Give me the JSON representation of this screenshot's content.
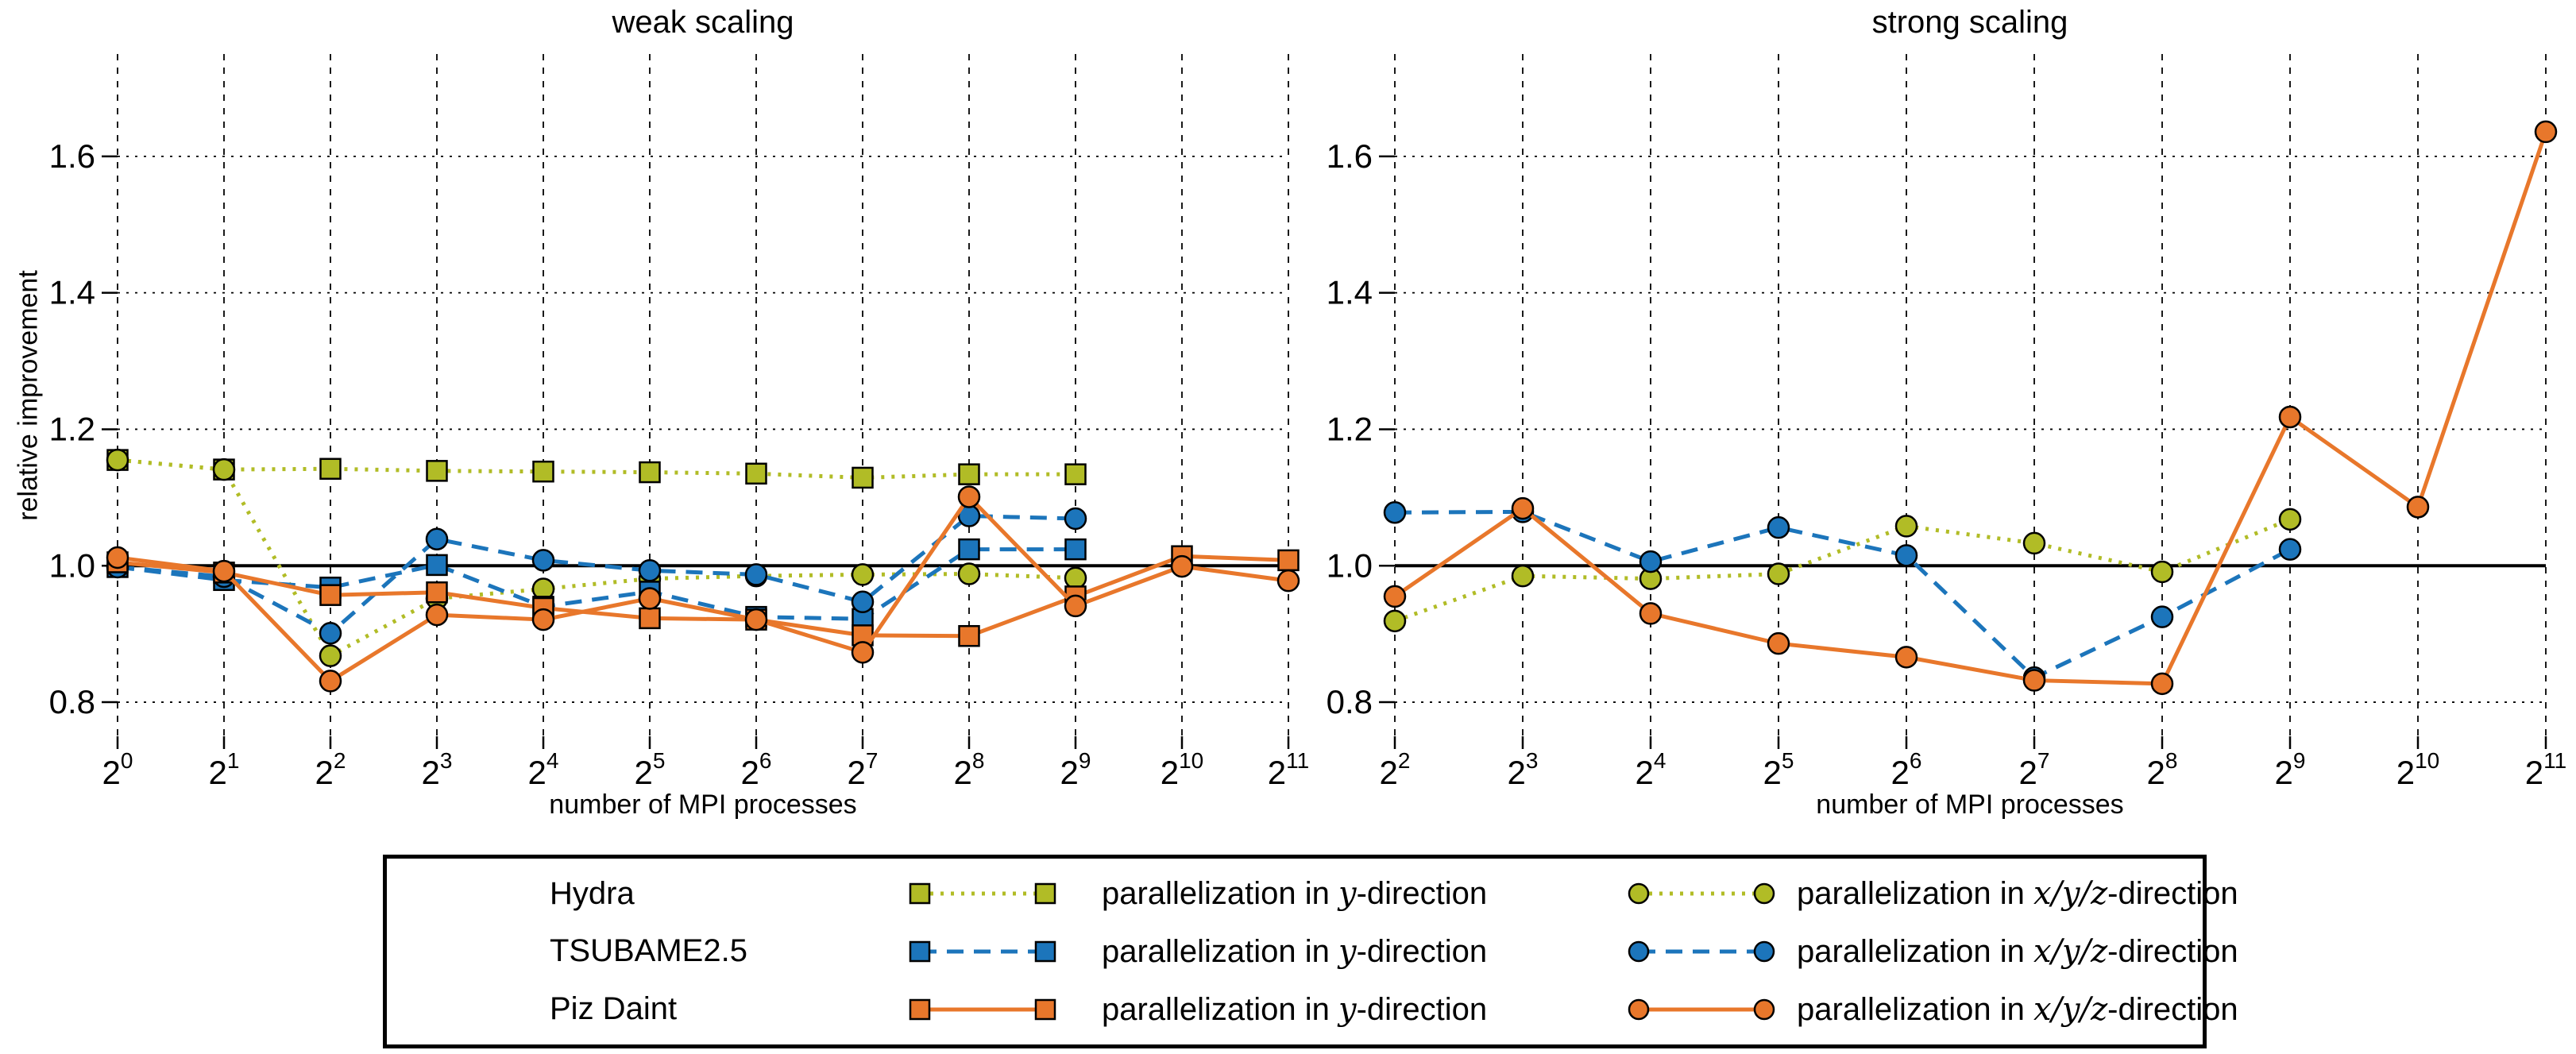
{
  "figure": {
    "ylabel": "relative improvement"
  },
  "colors": {
    "hydra": "#b1bc26",
    "tsubame": "#1c75bb",
    "pizdaint": "#e8772b",
    "baseline": "#000000",
    "grid": "#000000",
    "background": "#ffffff"
  },
  "legend": {
    "rows": [
      {
        "system": "Hydra",
        "color": "#b1bc26",
        "line": "dotted"
      },
      {
        "system": "TSUBAME2.5",
        "color": "#1c75bb",
        "line": "dashed"
      },
      {
        "system": "Piz Daint",
        "color": "#e8772b",
        "line": "solid"
      }
    ],
    "col2": {
      "pre": "parallelization in ",
      "math": "y",
      "post": "-direction",
      "marker": "square"
    },
    "col3": {
      "pre": "parallelization in ",
      "math": "x/y/z",
      "post": "-direction",
      "marker": "circle"
    }
  },
  "chart_data": [
    {
      "type": "line",
      "title": "weak scaling",
      "xlabel": "number of MPI processes",
      "ylabel": "relative improvement",
      "x_axis": "log2, labels are 2^exponent",
      "x_tick_exponents": [
        0,
        1,
        2,
        3,
        4,
        5,
        6,
        7,
        8,
        9,
        10,
        11
      ],
      "ylim": [
        0.75,
        1.75
      ],
      "yticks": [
        0.8,
        1.0,
        1.2,
        1.4,
        1.6
      ],
      "baseline_y": 1.0,
      "grid": true,
      "series": [
        {
          "name": "Hydra parallelization in y-direction",
          "system": "Hydra",
          "color": "#b1bc26",
          "line": "dotted",
          "marker": "square",
          "x_exponents": [
            0,
            1,
            2,
            3,
            4,
            5,
            6,
            7,
            8,
            9
          ],
          "y": [
            1.155,
            1.141,
            1.142,
            1.139,
            1.138,
            1.137,
            1.135,
            1.129,
            1.134,
            1.134
          ]
        },
        {
          "name": "Hydra parallelization in x/y/z-direction",
          "system": "Hydra",
          "color": "#b1bc26",
          "line": "dotted",
          "marker": "circle",
          "x_exponents": [
            0,
            1,
            2,
            3,
            4,
            5,
            6,
            7,
            8,
            9
          ],
          "y": [
            1.155,
            1.141,
            0.868,
            0.952,
            0.966,
            0.981,
            0.985,
            0.987,
            0.988,
            0.982
          ]
        },
        {
          "name": "TSUBAME2.5 parallelization in y-direction",
          "system": "TSUBAME2.5",
          "color": "#1c75bb",
          "line": "dashed",
          "marker": "square",
          "x_exponents": [
            0,
            1,
            2,
            3,
            4,
            5,
            6,
            7,
            8,
            9
          ],
          "y": [
            0.998,
            0.979,
            0.968,
            1.001,
            0.94,
            0.962,
            0.925,
            0.922,
            1.024,
            1.024
          ]
        },
        {
          "name": "TSUBAME2.5 parallelization in x/y/z-direction",
          "system": "TSUBAME2.5",
          "color": "#1c75bb",
          "line": "dashed",
          "marker": "circle",
          "x_exponents": [
            0,
            1,
            2,
            3,
            4,
            5,
            6,
            7,
            8,
            9
          ],
          "y": [
            0.998,
            0.984,
            0.901,
            1.039,
            1.008,
            0.993,
            0.987,
            0.947,
            1.073,
            1.069
          ]
        },
        {
          "name": "Piz Daint parallelization in y-direction",
          "system": "Piz Daint",
          "color": "#e8772b",
          "line": "solid",
          "marker": "square",
          "x_exponents": [
            0,
            1,
            2,
            3,
            4,
            5,
            6,
            7,
            8,
            9,
            10,
            11
          ],
          "y": [
            1.005,
            0.99,
            0.957,
            0.961,
            0.938,
            0.923,
            0.921,
            0.898,
            0.897,
            0.955,
            1.014,
            1.008
          ]
        },
        {
          "name": "Piz Daint parallelization in x/y/z-direction",
          "system": "Piz Daint",
          "color": "#e8772b",
          "line": "solid",
          "marker": "circle",
          "x_exponents": [
            0,
            1,
            2,
            3,
            4,
            5,
            6,
            7,
            8,
            9,
            10,
            11
          ],
          "y": [
            1.012,
            0.992,
            0.831,
            0.928,
            0.921,
            0.952,
            0.921,
            0.873,
            1.101,
            0.941,
            0.999,
            0.978
          ]
        }
      ]
    },
    {
      "type": "line",
      "title": "strong scaling",
      "xlabel": "number of MPI processes",
      "ylabel": "relative improvement",
      "x_axis": "log2, labels are 2^exponent",
      "x_tick_exponents": [
        2,
        3,
        4,
        5,
        6,
        7,
        8,
        9,
        10,
        11
      ],
      "ylim": [
        0.75,
        1.75
      ],
      "yticks": [
        0.8,
        1.0,
        1.2,
        1.4,
        1.6
      ],
      "baseline_y": 1.0,
      "grid": true,
      "series": [
        {
          "name": "Hydra parallelization in x/y/z-direction",
          "system": "Hydra",
          "color": "#b1bc26",
          "line": "dotted",
          "marker": "circle",
          "x_exponents": [
            2,
            3,
            4,
            5,
            6,
            7,
            8,
            9
          ],
          "y": [
            0.919,
            0.985,
            0.981,
            0.988,
            1.058,
            1.033,
            0.991,
            1.068
          ]
        },
        {
          "name": "TSUBAME2.5 parallelization in x/y/z-direction",
          "system": "TSUBAME2.5",
          "color": "#1c75bb",
          "line": "dashed",
          "marker": "circle",
          "x_exponents": [
            2,
            3,
            4,
            5,
            6,
            7,
            8,
            9
          ],
          "y": [
            1.078,
            1.079,
            1.006,
            1.056,
            1.015,
            0.836,
            0.925,
            1.024
          ]
        },
        {
          "name": "Piz Daint parallelization in x/y/z-direction",
          "system": "Piz Daint",
          "color": "#e8772b",
          "line": "solid",
          "marker": "circle",
          "x_exponents": [
            2,
            3,
            4,
            5,
            6,
            7,
            8,
            9,
            10,
            11
          ],
          "y": [
            0.955,
            1.084,
            0.93,
            0.886,
            0.866,
            0.832,
            0.827,
            1.218,
            1.086,
            1.636
          ]
        }
      ]
    }
  ]
}
